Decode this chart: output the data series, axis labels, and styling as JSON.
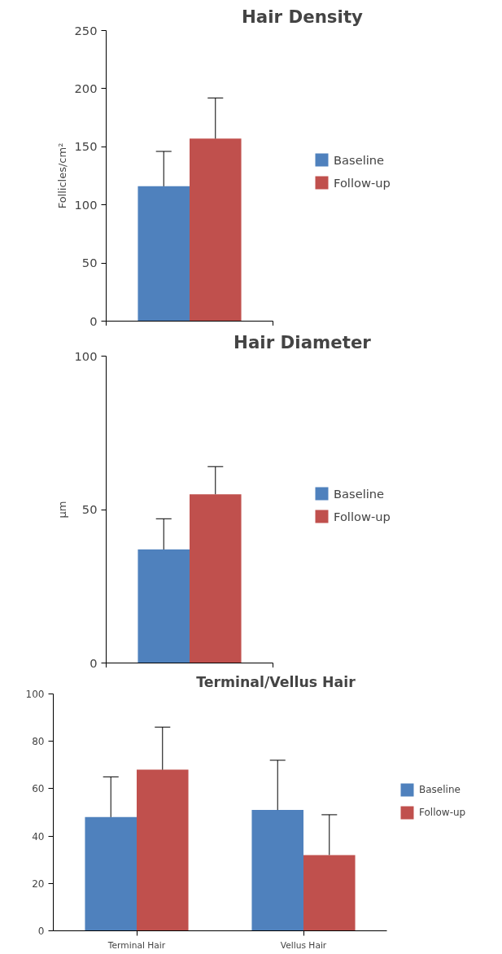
{
  "chart_data": [
    {
      "type": "bar",
      "title": "Hair Density",
      "ylabel": "Follicles/cm²",
      "categories": [
        null
      ],
      "ylim": [
        0,
        250
      ],
      "yticks": [
        0,
        50,
        100,
        150,
        200,
        250
      ],
      "grid": false,
      "legend": "right",
      "tick_labels": "y",
      "series": [
        {
          "name": "Baseline",
          "color": "#4f81bd",
          "values": [
            116
          ],
          "errors": [
            [
              116,
              146
            ]
          ]
        },
        {
          "name": "Follow-up",
          "color": "#c0504d",
          "values": [
            157
          ],
          "errors": [
            [
              157,
              192
            ]
          ]
        }
      ]
    },
    {
      "type": "bar",
      "title": "Hair Diameter",
      "ylabel": "μm",
      "categories": [
        null
      ],
      "ylim": [
        0,
        100
      ],
      "yticks": [
        0,
        50,
        100
      ],
      "grid": false,
      "legend": "right",
      "tick_labels": "y",
      "series": [
        {
          "name": "Baseline",
          "color": "#4f81bd",
          "values": [
            37
          ],
          "errors": [
            [
              37,
              47
            ]
          ]
        },
        {
          "name": "Follow-up",
          "color": "#c0504d",
          "values": [
            55
          ],
          "errors": [
            [
              55,
              64
            ]
          ]
        }
      ]
    },
    {
      "type": "bar",
      "title": "Terminal/Vellus Hair",
      "categories": [
        "Terminal Hair",
        "Vellus Hair"
      ],
      "ylim": [
        0,
        100
      ],
      "yticks": [
        0,
        20,
        40,
        60,
        80,
        100
      ],
      "grid": false,
      "legend": "right",
      "series": [
        {
          "name": "Baseline",
          "color": "#4f81bd",
          "values": [
            48,
            51
          ],
          "errors": [
            [
              48,
              65
            ],
            [
              51,
              72
            ]
          ]
        },
        {
          "name": "Follow-up",
          "color": "#c0504d",
          "values": [
            68,
            32
          ],
          "errors": [
            [
              68,
              86
            ],
            [
              32,
              49
            ]
          ]
        }
      ]
    }
  ]
}
